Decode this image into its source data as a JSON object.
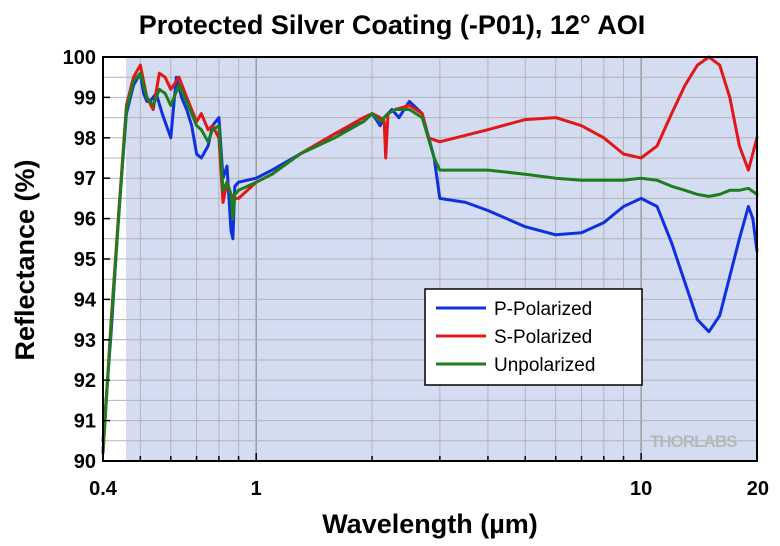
{
  "chart_data": {
    "type": "line",
    "title": "Protected Silver Coating (-P01), 12° AOI",
    "xlabel": "Wavelength (µm)",
    "ylabel": "Reflectance (%)",
    "x_scale": "log",
    "xlim": [
      0.4,
      20
    ],
    "ylim": [
      90,
      100
    ],
    "x_ticks": [
      {
        "value": 0.4,
        "label": "0.4"
      },
      {
        "value": 1,
        "label": "1"
      },
      {
        "value": 10,
        "label": "10"
      },
      {
        "value": 20,
        "label": "20"
      }
    ],
    "y_ticks": [
      {
        "value": 90,
        "label": "90"
      },
      {
        "value": 91,
        "label": "91"
      },
      {
        "value": 92,
        "label": "92"
      },
      {
        "value": 93,
        "label": "93"
      },
      {
        "value": 94,
        "label": "94"
      },
      {
        "value": 95,
        "label": "95"
      },
      {
        "value": 96,
        "label": "96"
      },
      {
        "value": 97,
        "label": "97"
      },
      {
        "value": 98,
        "label": "98"
      },
      {
        "value": 99,
        "label": "99"
      },
      {
        "value": 100,
        "label": "100"
      }
    ],
    "shaded_region": [
      0.4,
      20
    ],
    "grid": true,
    "legend_position": "lower-right",
    "watermark": "THORLABS",
    "series": [
      {
        "name": "P-Polarized",
        "color": "#1030e0",
        "x": [
          0.4,
          0.42,
          0.44,
          0.46,
          0.48,
          0.5,
          0.51,
          0.52,
          0.53,
          0.55,
          0.57,
          0.6,
          0.62,
          0.64,
          0.66,
          0.68,
          0.7,
          0.72,
          0.75,
          0.77,
          0.8,
          0.82,
          0.84,
          0.86,
          0.87,
          0.88,
          0.9,
          1.0,
          1.1,
          1.3,
          1.6,
          1.9,
          2.0,
          2.1,
          2.15,
          2.2,
          2.25,
          2.35,
          2.5,
          2.7,
          2.9,
          3.0,
          3.5,
          4,
          5,
          6,
          7,
          8,
          9,
          10,
          11,
          12,
          14,
          15,
          16,
          18,
          19,
          19.5,
          20
        ],
        "y": [
          90.5,
          93.2,
          96.2,
          98.6,
          99.3,
          99.6,
          99.1,
          98.9,
          98.9,
          99.1,
          98.6,
          98.0,
          99.5,
          99.0,
          98.7,
          98.3,
          97.6,
          97.5,
          97.8,
          98.3,
          98.5,
          97.0,
          97.3,
          95.7,
          95.5,
          96.8,
          96.9,
          97.0,
          97.2,
          97.6,
          98.1,
          98.4,
          98.6,
          98.3,
          98.5,
          98.6,
          98.7,
          98.5,
          98.9,
          98.6,
          97.5,
          96.5,
          96.4,
          96.2,
          95.8,
          95.6,
          95.65,
          95.9,
          96.3,
          96.5,
          96.3,
          95.4,
          93.5,
          93.2,
          93.6,
          95.5,
          96.3,
          96.0,
          95.2
        ]
      },
      {
        "name": "S-Polarized",
        "color": "#e01818",
        "x": [
          0.4,
          0.42,
          0.44,
          0.46,
          0.48,
          0.5,
          0.52,
          0.54,
          0.56,
          0.58,
          0.6,
          0.63,
          0.66,
          0.7,
          0.72,
          0.75,
          0.77,
          0.8,
          0.82,
          0.84,
          0.86,
          0.88,
          0.9,
          1.0,
          1.1,
          1.3,
          1.6,
          1.9,
          2.0,
          2.1,
          2.15,
          2.17,
          2.2,
          2.3,
          2.5,
          2.7,
          2.8,
          3.0,
          4,
          5,
          6,
          7,
          8,
          9,
          10,
          11,
          12,
          13,
          14,
          15,
          16,
          17,
          18,
          19,
          20
        ],
        "y": [
          90.2,
          93.5,
          96.2,
          98.8,
          99.5,
          99.8,
          99.0,
          98.7,
          99.6,
          99.5,
          99.2,
          99.5,
          99.0,
          98.4,
          98.6,
          98.2,
          98.3,
          98.0,
          96.4,
          96.9,
          96.6,
          96.5,
          96.5,
          96.9,
          97.1,
          97.6,
          98.1,
          98.5,
          98.6,
          98.5,
          98.4,
          97.5,
          98.6,
          98.7,
          98.8,
          98.6,
          98.0,
          97.9,
          98.2,
          98.45,
          98.5,
          98.3,
          98.0,
          97.6,
          97.5,
          97.8,
          98.6,
          99.3,
          99.8,
          100.0,
          99.8,
          99.0,
          97.8,
          97.2,
          98.0
        ]
      },
      {
        "name": "Unpolarized",
        "color": "#1e7e1e",
        "x": [
          0.4,
          0.42,
          0.44,
          0.46,
          0.48,
          0.5,
          0.52,
          0.54,
          0.56,
          0.58,
          0.6,
          0.63,
          0.66,
          0.7,
          0.72,
          0.75,
          0.77,
          0.8,
          0.82,
          0.84,
          0.86,
          0.87,
          0.88,
          0.9,
          1.0,
          1.1,
          1.3,
          1.6,
          1.9,
          2.0,
          2.1,
          2.2,
          2.3,
          2.5,
          2.7,
          2.9,
          3.0,
          4,
          5,
          6,
          7,
          8,
          9,
          10,
          11,
          12,
          13,
          14,
          15,
          16,
          17,
          18,
          19,
          20
        ],
        "y": [
          90.2,
          93.4,
          96.1,
          98.7,
          99.4,
          99.6,
          99.0,
          98.8,
          99.2,
          99.1,
          98.8,
          99.3,
          98.9,
          98.3,
          98.2,
          97.9,
          98.2,
          98.3,
          96.7,
          96.9,
          96.6,
          96.0,
          96.6,
          96.7,
          96.9,
          97.1,
          97.6,
          98.0,
          98.4,
          98.6,
          98.4,
          98.6,
          98.7,
          98.7,
          98.5,
          97.5,
          97.2,
          97.2,
          97.1,
          97.0,
          96.95,
          96.95,
          96.95,
          97.0,
          96.95,
          96.8,
          96.7,
          96.6,
          96.55,
          96.6,
          96.7,
          96.7,
          96.75,
          96.6
        ]
      }
    ]
  }
}
